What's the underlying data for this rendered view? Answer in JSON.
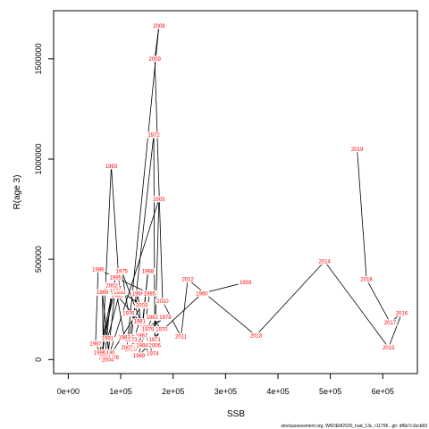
{
  "chart_data": {
    "type": "line",
    "title": "",
    "xlabel": "SSB",
    "ylabel": "R(age 3)",
    "xlim": [
      -28000,
      666000
    ],
    "ylim": [
      -70000,
      1740000
    ],
    "xticks": [
      {
        "value": 0,
        "label": "0e+00"
      },
      {
        "value": 100000,
        "label": "1e+05"
      },
      {
        "value": 200000,
        "label": "2e+05"
      },
      {
        "value": 300000,
        "label": "3e+05"
      },
      {
        "value": 400000,
        "label": "4e+05"
      },
      {
        "value": 500000,
        "label": "5e+05"
      },
      {
        "value": 600000,
        "label": "6e+05"
      }
    ],
    "yticks": [
      {
        "value": 0,
        "label": "0"
      },
      {
        "value": 500000,
        "label": "500000"
      },
      {
        "value": 1000000,
        "label": "1000000"
      },
      {
        "value": 1500000,
        "label": "1500000"
      }
    ],
    "points": [
      {
        "year": "1959",
        "ssb": 338000,
        "r": 385000
      },
      {
        "year": "1960",
        "ssb": 255000,
        "r": 330000
      },
      {
        "year": "1961",
        "ssb": 179000,
        "r": 145000
      },
      {
        "year": "1962",
        "ssb": 160000,
        "r": 210000
      },
      {
        "year": "1963",
        "ssb": 150000,
        "r": 150000
      },
      {
        "year": "1964",
        "ssb": 132000,
        "r": 85000
      },
      {
        "year": "1965",
        "ssb": 116000,
        "r": 110000
      },
      {
        "year": "1966",
        "ssb": 133000,
        "r": 330000
      },
      {
        "year": "1967",
        "ssb": 140000,
        "r": 120000
      },
      {
        "year": "1968",
        "ssb": 152000,
        "r": 440000
      },
      {
        "year": "1969",
        "ssb": 135000,
        "r": 20000
      },
      {
        "year": "1970",
        "ssb": 178000,
        "r": 150000
      },
      {
        "year": "1971",
        "ssb": 165000,
        "r": 100000
      },
      {
        "year": "1972",
        "ssb": 163000,
        "r": 1120000
      },
      {
        "year": "1973",
        "ssb": 120000,
        "r": 100000
      },
      {
        "year": "1974",
        "ssb": 161000,
        "r": 30000
      },
      {
        "year": "1975",
        "ssb": 102000,
        "r": 440000
      },
      {
        "year": "1976",
        "ssb": 115000,
        "r": 230000
      },
      {
        "year": "1977",
        "ssb": 148000,
        "r": 160000
      },
      {
        "year": "1978",
        "ssb": 185000,
        "r": 210000
      },
      {
        "year": "1979",
        "ssb": 152000,
        "r": 150000
      },
      {
        "year": "1980",
        "ssb": 119000,
        "r": 50000
      },
      {
        "year": "1981",
        "ssb": 136000,
        "r": 190000
      },
      {
        "year": "1982",
        "ssb": 93000,
        "r": 320000
      },
      {
        "year": "1983",
        "ssb": 107000,
        "r": 110000
      },
      {
        "year": "1984",
        "ssb": 141000,
        "r": 70000
      },
      {
        "year": "1985",
        "ssb": 155000,
        "r": 330000
      },
      {
        "year": "1986",
        "ssb": 57000,
        "r": 450000
      },
      {
        "year": "1987",
        "ssb": 52000,
        "r": 80000
      },
      {
        "year": "1988",
        "ssb": 67000,
        "r": 5000
      },
      {
        "year": "1989",
        "ssb": 65000,
        "r": 335000
      },
      {
        "year": "1990",
        "ssb": 77000,
        "r": 35000
      },
      {
        "year": "1991",
        "ssb": 75000,
        "r": 105000
      },
      {
        "year": "1992",
        "ssb": 98000,
        "r": 335000
      },
      {
        "year": "1993",
        "ssb": 82000,
        "r": 965000
      },
      {
        "year": "1994",
        "ssb": 65000,
        "r": 35000
      },
      {
        "year": "1995",
        "ssb": 90000,
        "r": 410000
      },
      {
        "year": "1996",
        "ssb": 60000,
        "r": 35000
      },
      {
        "year": "1997",
        "ssb": 90000,
        "r": 355000
      },
      {
        "year": "1998",
        "ssb": 75000,
        "r": 5000
      },
      {
        "year": "1999",
        "ssb": 85000,
        "r": 10000
      },
      {
        "year": "2000",
        "ssb": 75000,
        "r": 0
      },
      {
        "year": "2001",
        "ssb": 70000,
        "r": 10000
      },
      {
        "year": "2002",
        "ssb": 83000,
        "r": 370000
      },
      {
        "year": "2003",
        "ssb": 140000,
        "r": 270000
      },
      {
        "year": "2004",
        "ssb": 75000,
        "r": 0
      },
      {
        "year": "2005",
        "ssb": 173000,
        "r": 800000
      },
      {
        "year": "2006",
        "ssb": 165000,
        "r": 70000
      },
      {
        "year": "2007",
        "ssb": 112000,
        "r": 60000
      },
      {
        "year": "2008",
        "ssb": 173000,
        "r": 1665000
      },
      {
        "year": "2009",
        "ssb": 165000,
        "r": 1500000
      },
      {
        "year": "2010",
        "ssb": 180000,
        "r": 290000
      },
      {
        "year": "2011",
        "ssb": 215000,
        "r": 115000
      },
      {
        "year": "2012",
        "ssb": 228000,
        "r": 400000
      },
      {
        "year": "2013",
        "ssb": 358000,
        "r": 120000
      },
      {
        "year": "2014",
        "ssb": 489000,
        "r": 490000
      },
      {
        "year": "2015",
        "ssb": 611000,
        "r": 60000
      },
      {
        "year": "2016",
        "ssb": 636000,
        "r": 230000
      },
      {
        "year": "2017",
        "ssb": 614000,
        "r": 185000
      },
      {
        "year": "2018",
        "ssb": 569000,
        "r": 400000
      },
      {
        "year": "2019",
        "ssb": 551000,
        "r": 1050000
      }
    ],
    "segments": [
      [
        "1959",
        "1960"
      ],
      [
        "1960",
        "1961"
      ],
      [
        "1961",
        "1962"
      ],
      [
        "1962",
        "1963"
      ],
      [
        "1963",
        "1964"
      ],
      [
        "1964",
        "1965"
      ],
      [
        "1965",
        "1966"
      ],
      [
        "1966",
        "1967"
      ],
      [
        "1967",
        "1968"
      ],
      [
        "1968",
        "1969"
      ],
      [
        "1969",
        "1970"
      ],
      [
        "1970",
        "1971"
      ],
      [
        "1971",
        "1972"
      ],
      [
        "1972",
        "1973"
      ],
      [
        "1973",
        "1974"
      ],
      [
        "1974",
        "1975"
      ],
      [
        "1975",
        "1976"
      ],
      [
        "1976",
        "1977"
      ],
      [
        "1977",
        "1978"
      ],
      [
        "1978",
        "1979"
      ],
      [
        "1979",
        "1980"
      ],
      [
        "1980",
        "1981"
      ],
      [
        "1981",
        "1982"
      ],
      [
        "1982",
        "1983"
      ],
      [
        "1983",
        "1984"
      ],
      [
        "1984",
        "1985"
      ],
      [
        "1985",
        "1986"
      ],
      [
        "1986",
        "1987"
      ],
      [
        "1987",
        "1988"
      ],
      [
        "1988",
        "1989"
      ],
      [
        "1989",
        "1990"
      ],
      [
        "1990",
        "1991"
      ],
      [
        "1991",
        "1992"
      ],
      [
        "1992",
        "1993"
      ],
      [
        "1993",
        "1994"
      ],
      [
        "1994",
        "1995"
      ],
      [
        "1995",
        "1996"
      ],
      [
        "1996",
        "1997"
      ],
      [
        "1997",
        "1998"
      ],
      [
        "1998",
        "1999"
      ],
      [
        "1999",
        "2000"
      ],
      [
        "2000",
        "2001"
      ],
      [
        "2001",
        "2002"
      ],
      [
        "2002",
        "2003"
      ],
      [
        "2003",
        "2004"
      ],
      [
        "2004",
        "2005"
      ],
      [
        "2005",
        "2006"
      ],
      [
        "2006",
        "2007"
      ],
      [
        "2007",
        "2008"
      ],
      [
        "2008",
        "2009"
      ],
      [
        "2009",
        "2010"
      ],
      [
        "2010",
        "2011"
      ],
      [
        "2011",
        "2012"
      ],
      [
        "2012",
        "2013"
      ],
      [
        "2013",
        "2014"
      ],
      [
        "2014",
        "2015"
      ],
      [
        "2015",
        "2016"
      ],
      [
        "2016",
        "2017"
      ],
      [
        "2017",
        "2018"
      ],
      [
        "2018",
        "2019"
      ]
    ],
    "line_color": "#000000",
    "label_color": "#ff0000",
    "grid": false,
    "footnote": "stockassessment.org, WKDEM2020_had_13c, r11796 , git: df6b7c1bcb83"
  }
}
